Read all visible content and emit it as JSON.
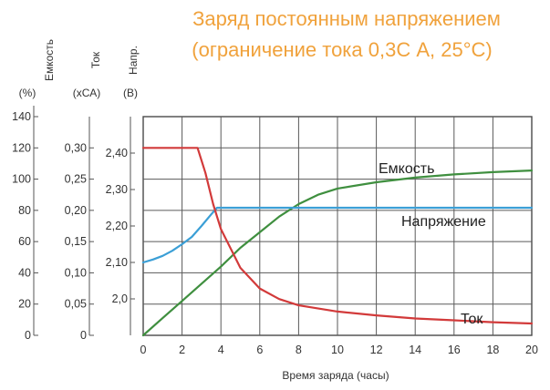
{
  "chart_data": {
    "type": "line",
    "title": "Заряд постоянным напряжением",
    "subtitle": "(ограничение тока 0,3С А, 25°С)",
    "xlabel": "Время заряда (часы)",
    "xlim": [
      0,
      20
    ],
    "x_ticks": [
      "0",
      "2",
      "4",
      "6",
      "8",
      "10",
      "12",
      "14",
      "16",
      "18",
      "20"
    ],
    "grid": true,
    "axes": [
      {
        "title": "Емкость",
        "unit": "(%)",
        "range": [
          0,
          140
        ],
        "ticks": [
          {
            "v": 0,
            "label": "0"
          },
          {
            "v": 20,
            "label": "20"
          },
          {
            "v": 40,
            "label": "40"
          },
          {
            "v": 60,
            "label": "60"
          },
          {
            "v": 80,
            "label": "80"
          },
          {
            "v": 100,
            "label": "100"
          },
          {
            "v": 120,
            "label": "120"
          },
          {
            "v": 140,
            "label": "140"
          }
        ]
      },
      {
        "title": "Ток",
        "unit": "(хСА)",
        "range": [
          0,
          0.35
        ],
        "ticks": [
          {
            "v": 0,
            "label": "0"
          },
          {
            "v": 0.05,
            "label": "0,05"
          },
          {
            "v": 0.1,
            "label": "0,10"
          },
          {
            "v": 0.15,
            "label": "0,15"
          },
          {
            "v": 0.2,
            "label": "0,20"
          },
          {
            "v": 0.25,
            "label": "0,25"
          },
          {
            "v": 0.3,
            "label": "0,30"
          }
        ]
      },
      {
        "title": "Напр.",
        "unit": "(В)",
        "range": [
          1.9,
          2.5
        ],
        "ticks": [
          {
            "v": 2.0,
            "label": "2,0"
          },
          {
            "v": 2.1,
            "label": "2,10"
          },
          {
            "v": 2.2,
            "label": "2,20"
          },
          {
            "v": 2.3,
            "label": "2,30"
          },
          {
            "v": 2.4,
            "label": "2,40"
          }
        ]
      }
    ],
    "series": [
      {
        "name": "Емкость",
        "axis": 0,
        "color": "#3f8f3f",
        "x": [
          0,
          1,
          2,
          3,
          4,
          5,
          6,
          7,
          8,
          9,
          10,
          12,
          14,
          16,
          18,
          20
        ],
        "y": [
          0,
          11,
          22,
          33,
          44,
          56,
          66,
          76,
          84,
          90,
          94,
          98,
          101,
          103,
          104.5,
          105.5
        ]
      },
      {
        "name": "Напряжение",
        "axis": 2,
        "color": "#3b9fd6",
        "x": [
          0,
          0.5,
          1,
          1.5,
          2,
          2.5,
          3,
          3.5,
          3.8,
          4,
          6,
          8,
          10,
          12,
          14,
          16,
          18,
          20
        ],
        "y": [
          2.1,
          2.108,
          2.118,
          2.132,
          2.15,
          2.17,
          2.2,
          2.232,
          2.25,
          2.25,
          2.25,
          2.25,
          2.25,
          2.25,
          2.25,
          2.25,
          2.25,
          2.25
        ]
      },
      {
        "name": "Ток",
        "axis": 1,
        "color": "#d23a3a",
        "x": [
          0,
          1,
          2,
          2.8,
          3.2,
          3.6,
          4,
          5,
          6,
          7,
          8,
          10,
          12,
          14,
          16,
          18,
          20
        ],
        "y": [
          0.3,
          0.3,
          0.3,
          0.3,
          0.26,
          0.21,
          0.17,
          0.108,
          0.075,
          0.058,
          0.048,
          0.038,
          0.032,
          0.027,
          0.024,
          0.021,
          0.019
        ]
      }
    ]
  }
}
